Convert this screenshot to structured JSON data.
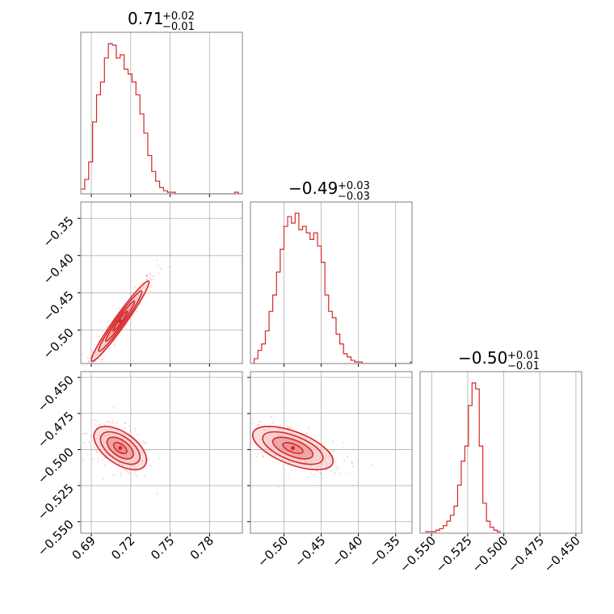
{
  "chart_data": {
    "type": "corner",
    "colors": {
      "main": "#d62728",
      "fill_dark": "#e5878a",
      "fill_light": "#f4c4c5"
    },
    "parameters": [
      {
        "range": [
          0.682,
          0.805
        ],
        "ticks": [
          0.69,
          0.72,
          0.75,
          0.78
        ],
        "tick_labels": [
          "0.69",
          "0.72",
          "0.75",
          "0.78"
        ],
        "title": {
          "median": "0.71",
          "plus": "+0.02",
          "minus": "−0.01"
        },
        "hist": {
          "bin_start": 0.682,
          "bin_width": 0.003,
          "counts": [
            3,
            9,
            20,
            45,
            62,
            70,
            85,
            94,
            93,
            85,
            87,
            78,
            75,
            70,
            62,
            50,
            38,
            24,
            14,
            8,
            4,
            2,
            1,
            1,
            0,
            0,
            0,
            0,
            0,
            0,
            0,
            0,
            0,
            0,
            0,
            0,
            0,
            0,
            0,
            1,
            0
          ]
        }
      },
      {
        "range": [
          -0.545,
          -0.328
        ],
        "ticks": [
          -0.5,
          -0.45,
          -0.4,
          -0.35
        ],
        "tick_labels": [
          "−0.50",
          "−0.45",
          "−0.40",
          "−0.35"
        ],
        "title": {
          "median": "−0.49",
          "plus": "+0.03",
          "minus": "−0.03"
        },
        "hist": {
          "bin_start": -0.545,
          "bin_width": 0.005,
          "counts": [
            0,
            3,
            8,
            12,
            20,
            32,
            42,
            56,
            70,
            84,
            90,
            86,
            92,
            82,
            84,
            80,
            76,
            80,
            72,
            62,
            42,
            32,
            28,
            18,
            12,
            6,
            4,
            2,
            1,
            1,
            0,
            0,
            0,
            0,
            0,
            0,
            0,
            0,
            0,
            0,
            0,
            0,
            0,
            1
          ]
        }
      },
      {
        "range": [
          -0.558,
          -0.446
        ],
        "ticks": [
          -0.55,
          -0.525,
          -0.5,
          -0.475,
          -0.45
        ],
        "tick_labels": [
          "−0.550",
          "−0.525",
          "−0.500",
          "−0.475",
          "−0.450"
        ],
        "title": {
          "median": "−0.50",
          "plus": "+0.01",
          "minus": "−0.01"
        },
        "hist": {
          "bin_start": -0.5545,
          "bin_width": 0.0025,
          "counts": [
            1,
            1,
            1,
            2,
            3,
            5,
            8,
            12,
            18,
            32,
            48,
            58,
            85,
            100,
            96,
            58,
            20,
            8,
            4,
            2,
            1
          ]
        }
      }
    ],
    "pairs": [
      {
        "x_param": 0,
        "y_param": 1,
        "center": [
          0.712,
          -0.488
        ],
        "sigma": [
          0.011,
          0.027
        ],
        "corr": 0.97
      },
      {
        "x_param": 0,
        "y_param": 2,
        "center": [
          0.712,
          -0.499
        ],
        "sigma": [
          0.01,
          0.0075
        ],
        "corr": -0.55
      },
      {
        "x_param": 1,
        "y_param": 2,
        "center": [
          -0.488,
          -0.499
        ],
        "sigma": [
          0.027,
          0.0075
        ],
        "corr": -0.6
      }
    ],
    "contour_levels_sigma": [
      0.5,
      1.0,
      1.5,
      2.0
    ],
    "grid": true
  }
}
